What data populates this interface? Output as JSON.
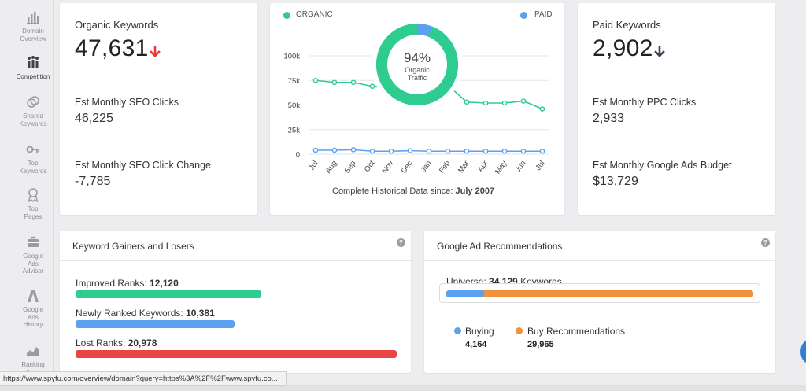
{
  "sidebar": {
    "items": [
      {
        "label": "Domain\nOverview",
        "icon": "bar-chart-icon"
      },
      {
        "label": "Competition",
        "icon": "competition-icon"
      },
      {
        "label": "Shared\nKeywords",
        "icon": "venn-icon"
      },
      {
        "label": "Top\nKeywords",
        "icon": "key-icon"
      },
      {
        "label": "Top\nPages",
        "icon": "ribbon-icon"
      },
      {
        "label": "Google\nAds\nAdvisor",
        "icon": "briefcase-icon"
      },
      {
        "label": "Google\nAds\nHistory",
        "icon": "ads-a-icon"
      },
      {
        "label": "Ranking\nHistory",
        "icon": "area-chart-icon"
      }
    ]
  },
  "organic": {
    "title": "Organic Keywords",
    "value": "47,631",
    "clicks_label": "Est Monthly SEO Clicks",
    "clicks_value": "46,225",
    "change_label": "Est Monthly SEO Click Change",
    "change_value": "-7,785",
    "trend_color": "#e8383a"
  },
  "paid": {
    "title": "Paid Keywords",
    "value": "2,902",
    "clicks_label": "Est Monthly PPC Clicks",
    "clicks_value": "2,933",
    "budget_label": "Est Monthly Google Ads Budget",
    "budget_value": "$13,729",
    "trend_color": "#3d4450"
  },
  "traffic_chart": {
    "legend_organic": "ORGANIC",
    "legend_paid": "PAID",
    "donut_percent": "94%",
    "donut_label_1": "Organic",
    "donut_label_2": "Traffic",
    "footer_prefix": "Complete Historical Data since: ",
    "footer_date": "July 2007"
  },
  "chart_data": {
    "type": "line",
    "categories": [
      "Jul",
      "Aug",
      "Sep",
      "Oct",
      "Nov",
      "Dec",
      "Jan",
      "Feb",
      "Mar",
      "Apr",
      "May",
      "Jun",
      "Jul"
    ],
    "yticks": [
      "0",
      "25k",
      "50k",
      "75k",
      "100k"
    ],
    "ylim": [
      0,
      100000
    ],
    "series": [
      {
        "name": "ORGANIC",
        "color": "#2ecc8f",
        "values": [
          75000,
          73000,
          73000,
          69000,
          69000,
          70000,
          70000,
          70000,
          53000,
          52000,
          52000,
          54000,
          46000
        ]
      },
      {
        "name": "PAID",
        "color": "#5aa2f0",
        "values": [
          4000,
          4000,
          4500,
          3000,
          3000,
          3500,
          3000,
          3000,
          3000,
          3000,
          3000,
          3000,
          3000
        ]
      }
    ],
    "donut": {
      "organic_share": 0.94,
      "organic_color": "#2ecc8f",
      "paid_color": "#5aa2f0"
    }
  },
  "gainers": {
    "title": "Keyword Gainers and Losers",
    "help": "?",
    "rows": [
      {
        "label": "Improved Ranks: ",
        "value": "12,120",
        "color": "#2ecc8f",
        "share": 0.578
      },
      {
        "label": "Newly Ranked Keywords: ",
        "value": "10,381",
        "color": "#5aa2f0",
        "share": 0.495
      },
      {
        "label": "Lost Ranks: ",
        "value": "20,978",
        "color": "#ea4545",
        "share": 1.0
      }
    ]
  },
  "ad_reco": {
    "title": "Google Ad Recommendations",
    "help": "?",
    "universe_label": "Universe: ",
    "universe_value": "34,129",
    "universe_suffix": " Keywords",
    "buying_share": 0.122,
    "buying_color": "#5aa2f0",
    "reco_color": "#f2913d",
    "buying_label": "Buying",
    "buying_value": "4,164",
    "reco_label": "Buy Recommendations",
    "reco_value": "29,965"
  },
  "status_bar": {
    "url": "https://www.spyfu.com/overview/domain?query=https%3A%2F%2Fwww.spyfu.co..."
  }
}
